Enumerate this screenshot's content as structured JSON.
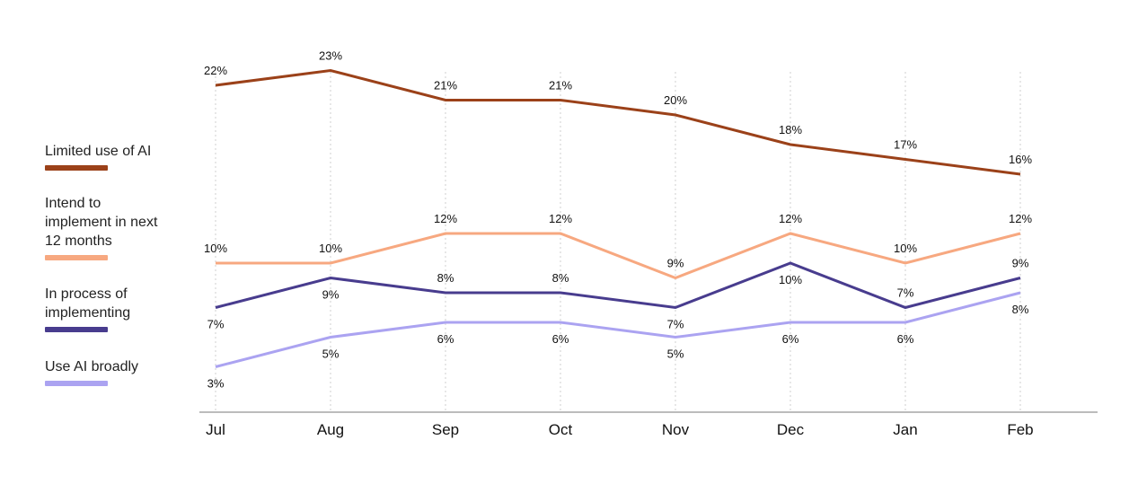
{
  "chart_data": {
    "type": "line",
    "categories": [
      "Jul",
      "Aug",
      "Sep",
      "Oct",
      "Nov",
      "Dec",
      "Jan",
      "Feb"
    ],
    "value_suffix": "%",
    "ylim": [
      0,
      25
    ],
    "grid": "vertical dotted",
    "legend_position": "left",
    "series": [
      {
        "name": "Limited use of AI",
        "color": "#9B4119",
        "values": [
          22,
          23,
          21,
          21,
          20,
          18,
          17,
          16
        ],
        "label_positions": [
          "above",
          "above",
          "above",
          "above",
          "above",
          "above",
          "above",
          "above"
        ]
      },
      {
        "name": "Intend to implement in next 12 months",
        "color": "#F7A880",
        "values": [
          10,
          10,
          12,
          12,
          9,
          12,
          10,
          12
        ],
        "label_positions": [
          "above",
          "above",
          "above",
          "above",
          "above",
          "above",
          "above",
          "above"
        ]
      },
      {
        "name": "In process of implementing",
        "color": "#483C8E",
        "values": [
          7,
          9,
          8,
          8,
          7,
          10,
          7,
          9
        ],
        "label_positions": [
          "below",
          "below",
          "above",
          "above",
          "below",
          "below",
          "above",
          "above"
        ]
      },
      {
        "name": "Use AI broadly",
        "color": "#ABA3F1",
        "values": [
          3,
          5,
          6,
          6,
          5,
          6,
          6,
          8
        ],
        "label_positions": [
          "below",
          "below",
          "below",
          "below",
          "below",
          "below",
          "below",
          "below"
        ]
      }
    ]
  },
  "legend": {
    "items": [
      {
        "label": "Limited use of AI",
        "color": "#9B4119"
      },
      {
        "label": "Intend to implement in next 12 months",
        "color": "#F7A880"
      },
      {
        "label": "In process of implementing",
        "color": "#483C8E"
      },
      {
        "label": "Use AI broadly",
        "color": "#ABA3F1"
      }
    ]
  }
}
